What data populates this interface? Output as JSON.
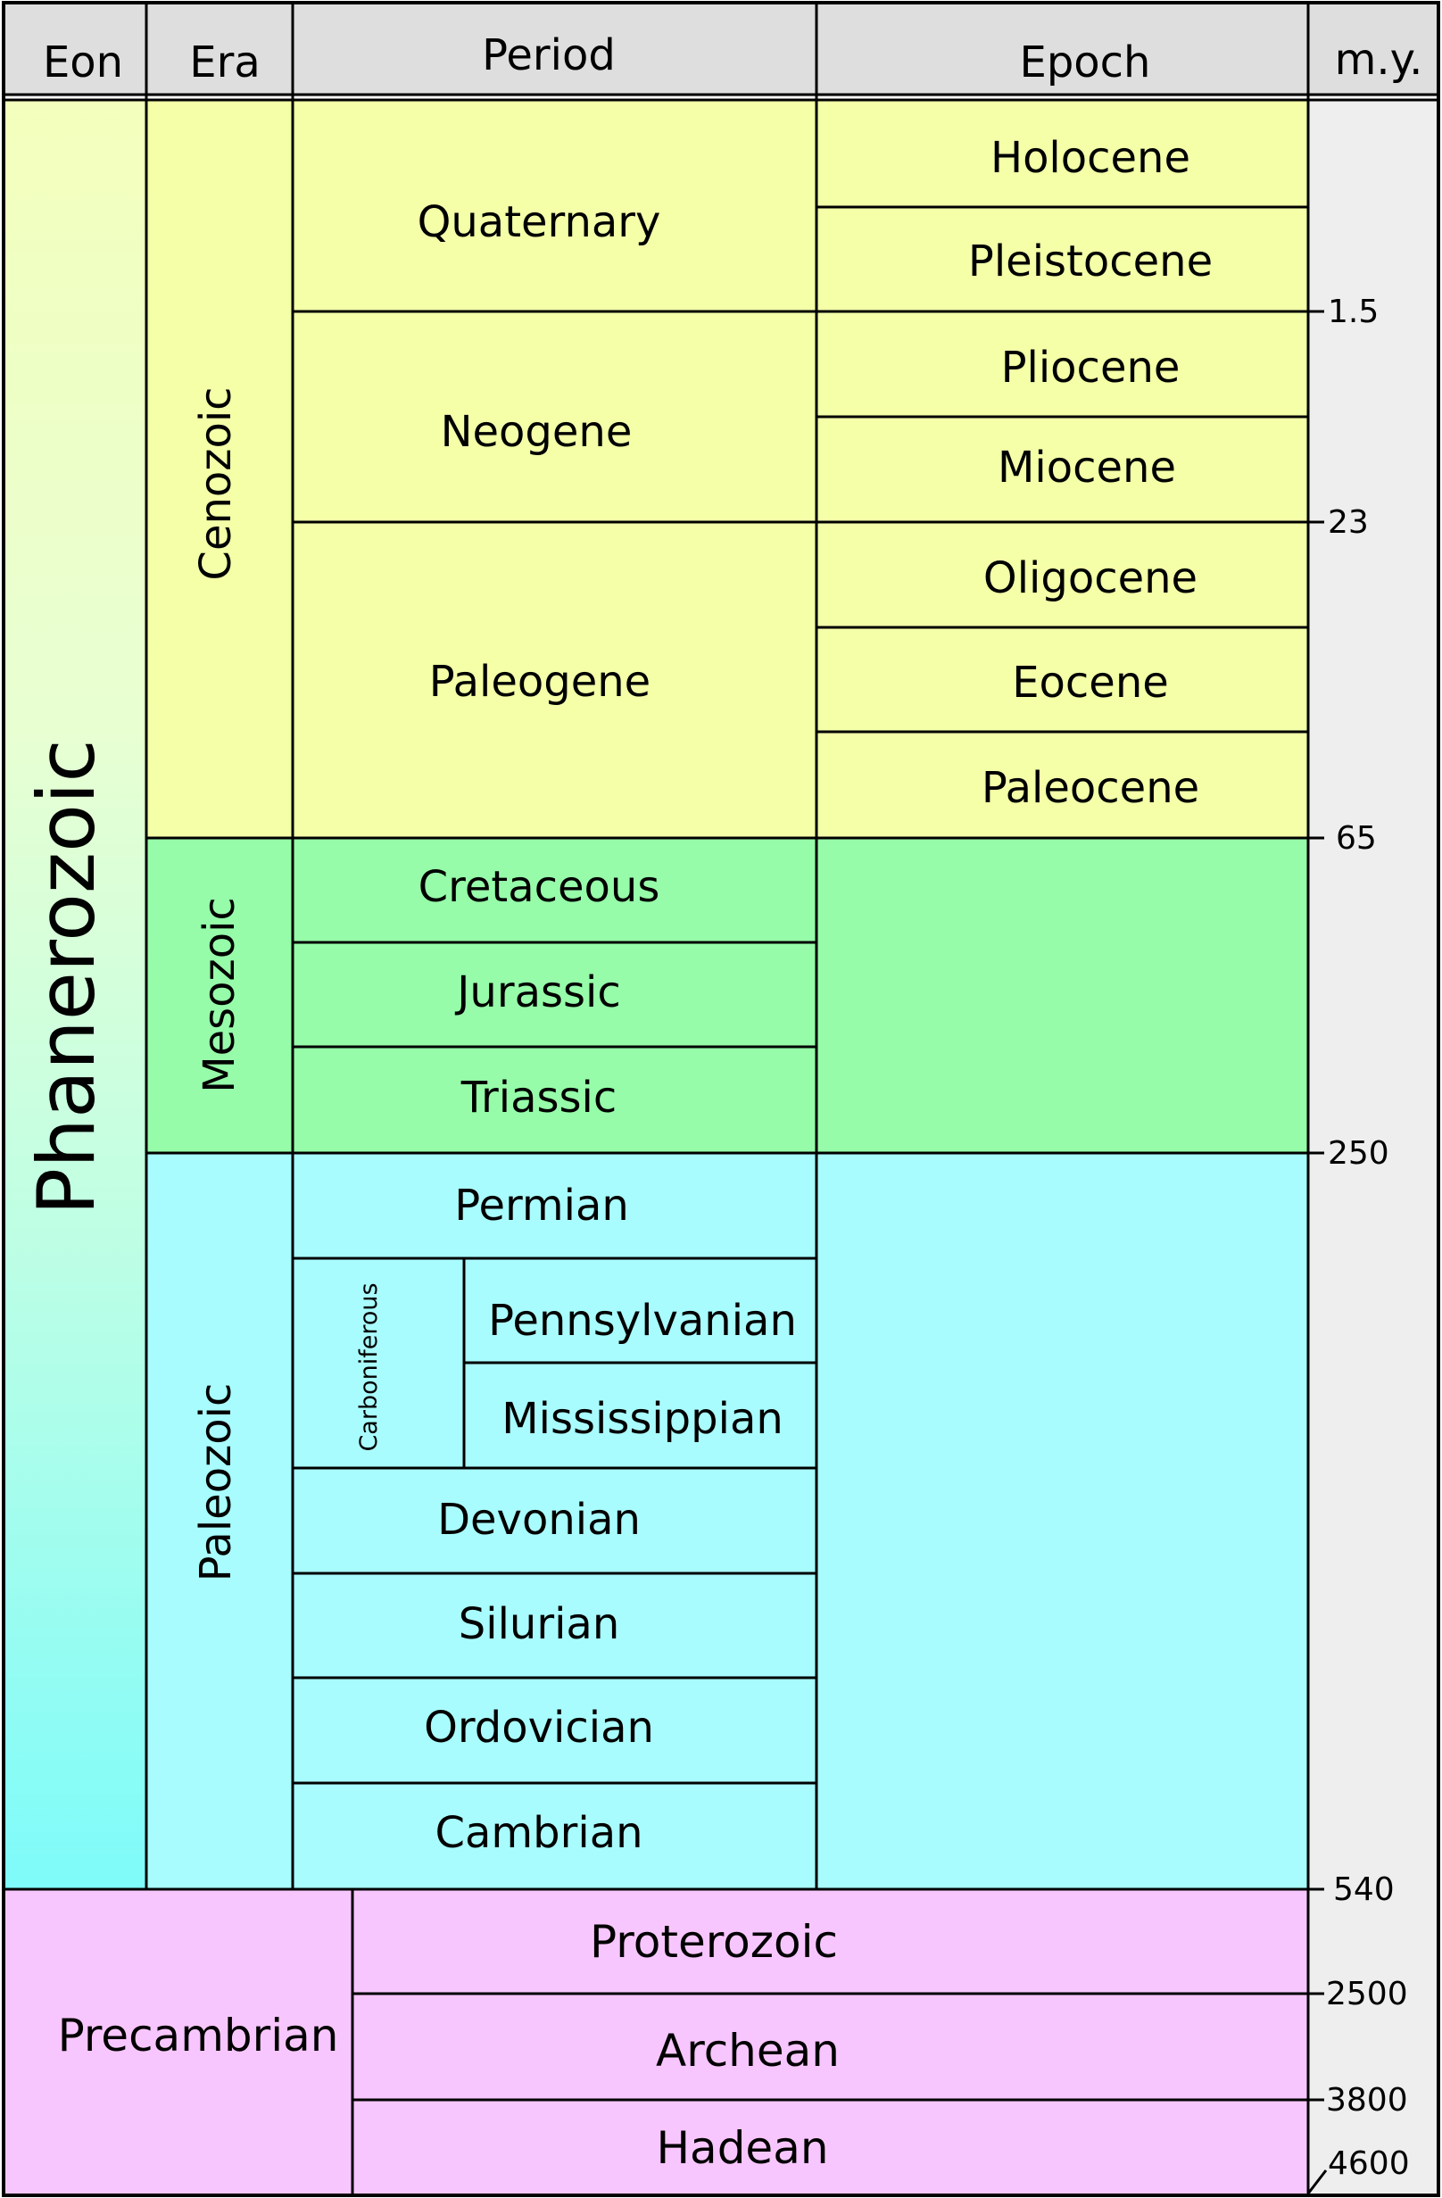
{
  "header": {
    "eon": "Eon",
    "era": "Era",
    "period": "Period",
    "epoch": "Epoch",
    "my": "m.y."
  },
  "eons": {
    "phanerozoic": "Phanerozoic",
    "precambrian": "Precambrian"
  },
  "eras": {
    "cenozoic": "Cenozoic",
    "mesozoic": "Mesozoic",
    "paleozoic": "Paleozoic"
  },
  "periods": {
    "quaternary": "Quaternary",
    "neogene": "Neogene",
    "paleogene": "Paleogene",
    "cretaceous": "Cretaceous",
    "jurassic": "Jurassic",
    "triassic": "Triassic",
    "permian": "Permian",
    "carboniferous": "Carboniferous",
    "pennsylvanian": "Pennsylvanian",
    "mississippian": "Mississippian",
    "devonian": "Devonian",
    "silurian": "Silurian",
    "ordovician": "Ordovician",
    "cambrian": "Cambrian"
  },
  "epochs": {
    "holocene": "Holocene",
    "pleistocene": "Pleistocene",
    "pliocene": "Pliocene",
    "miocene": "Miocene",
    "oligocene": "Oligocene",
    "eocene": "Eocene",
    "paleocene": "Paleocene"
  },
  "precambrian_eons": {
    "proterozoic": "Proterozoic",
    "archean": "Archean",
    "hadean": "Hadean"
  },
  "ages": {
    "a1": "1.5",
    "a2": "23",
    "a3": "65",
    "a4": "250",
    "a5": "540",
    "a6": "2500",
    "a7": "3800",
    "a8": "4600"
  },
  "colors": {
    "header": "#dedede",
    "cenozoic": "#f4ffa8",
    "mesozoic": "#96fca9",
    "paleozoic": "#a9fcfe",
    "precambrian": "#f8c6fe",
    "phanerozoic_top": "#f3ffbc",
    "phanerozoic_bottom": "#7efbfa",
    "ages_column": "#eeeeee"
  }
}
